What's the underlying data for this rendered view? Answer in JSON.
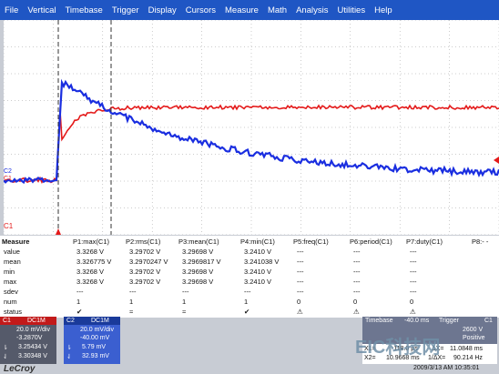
{
  "menu": [
    "File",
    "Vertical",
    "Timebase",
    "Trigger",
    "Display",
    "Cursors",
    "Measure",
    "Math",
    "Analysis",
    "Utilities",
    "Help"
  ],
  "screen": {
    "ch_label_c2": "C2",
    "ch_label_c1_mid": "C1",
    "ch_label_c1_bottom": "C1"
  },
  "measure_table": {
    "headers": [
      "Measure",
      "P1:max(C1)",
      "P2:rms(C1)",
      "P3:mean(C1)",
      "P4:min(C1)",
      "P5:freq(C1)",
      "P6:period(C1)",
      "P7:duty(C1)",
      "P8:- -"
    ],
    "rows": [
      {
        "label": "value",
        "values": [
          "3.3268 V",
          "3.29702 V",
          "3.29698 V",
          "3.2410 V",
          "---",
          "---",
          "---",
          ""
        ]
      },
      {
        "label": "mean",
        "values": [
          "3.326775 V",
          "3.2970247 V",
          "3.2969817 V",
          "3.241038 V",
          "---",
          "---",
          "---",
          ""
        ]
      },
      {
        "label": "min",
        "values": [
          "3.3268 V",
          "3.29702 V",
          "3.29698 V",
          "3.2410 V",
          "---",
          "---",
          "---",
          ""
        ]
      },
      {
        "label": "max",
        "values": [
          "3.3268 V",
          "3.29702 V",
          "3.29698 V",
          "3.2410 V",
          "---",
          "---",
          "---",
          ""
        ]
      },
      {
        "label": "sdev",
        "values": [
          "---",
          "---",
          "---",
          "---",
          "---",
          "---",
          "---",
          ""
        ]
      },
      {
        "label": "num",
        "values": [
          "1",
          "1",
          "1",
          "1",
          "0",
          "0",
          "0",
          ""
        ]
      },
      {
        "label": "status",
        "values": [
          "✔",
          "≈",
          "≈",
          "✔",
          "⚠",
          "⚠",
          "⚠",
          ""
        ]
      }
    ]
  },
  "ch1": {
    "name": "C1",
    "mode": "DC1M",
    "div": "20.0 mV/div",
    "offset": "-3.2870V",
    "l1": "3.25434 V",
    "l2": "3.30348 V"
  },
  "ch2": {
    "name": "C2",
    "mode": "DC1M",
    "div": "20.0 mV/div",
    "offset": "-40.00 mV",
    "l1": "5.79 mV",
    "l2": "32.93 mV"
  },
  "timebase": {
    "label": "Timebase",
    "value": "-40.0 ms",
    "trigger_label": "Trigger",
    "trigger_ch": "C1",
    "trigger_val": "2600 V",
    "trigger_mode": "Positive"
  },
  "cursors": {
    "x1_label": "X1=",
    "x1": "-118.0 µs",
    "dx_label": "ΔX=",
    "dx": "11.0848 ms",
    "x2_label": "X2=",
    "x2": "10.9668 ms",
    "inv_label": "1/ΔX=",
    "inv": "90.214 Hz"
  },
  "datetime": "2009/3/13 AM 10:35:01",
  "brand": "LeCroy",
  "watermark": "EIC科技网",
  "colors": {
    "ch1": "#e41a1a",
    "ch2": "#1a2ee0",
    "menubar": "#1f56c4"
  }
}
